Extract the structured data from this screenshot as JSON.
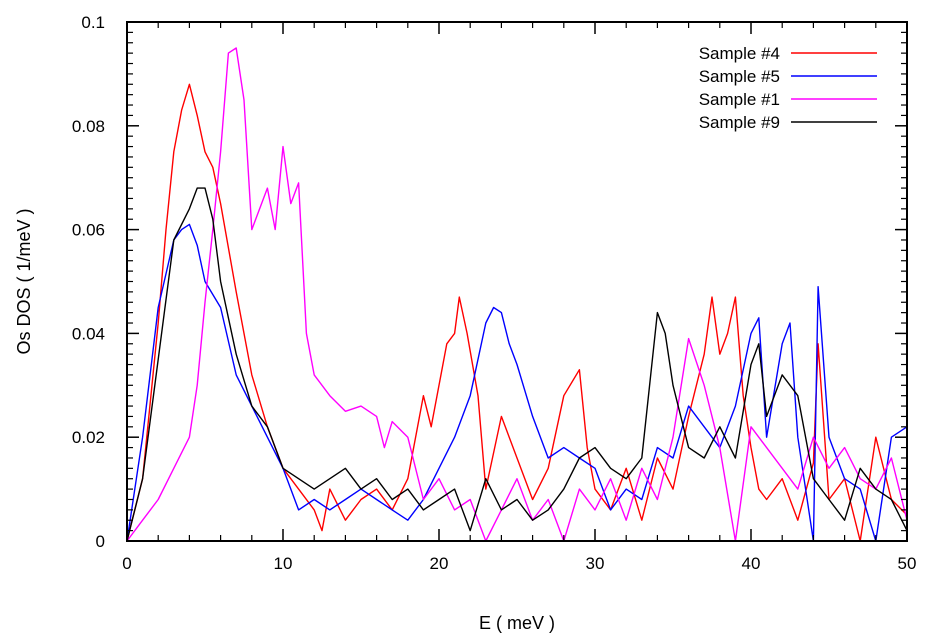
{
  "chart_data": {
    "type": "line",
    "title": "",
    "xlabel": "E ( meV )",
    "ylabel": "Os DOS ( 1/meV )",
    "xlim": [
      0,
      50
    ],
    "ylim": [
      0,
      0.1
    ],
    "xticks": [
      0,
      10,
      20,
      30,
      40,
      50
    ],
    "xtick_labels": [
      "0",
      "10",
      "20",
      "30",
      "40",
      "50"
    ],
    "yticks": [
      0,
      0.02,
      0.04,
      0.06,
      0.08,
      0.1
    ],
    "ytick_labels": [
      "0",
      "0.02",
      "0.04",
      "0.06",
      "0.08",
      "0.1"
    ],
    "grid": false,
    "legend_position": "top-right",
    "series": [
      {
        "name": "Sample #4",
        "color": "#ff0000",
        "x": [
          0,
          1,
          2,
          2.5,
          3,
          3.5,
          4,
          4.5,
          5,
          5.5,
          6,
          7,
          8,
          9,
          10,
          11,
          12,
          12.5,
          13,
          14,
          15,
          16,
          17,
          18,
          19,
          19.5,
          20,
          20.5,
          21,
          21.3,
          21.8,
          22.5,
          23,
          24,
          25,
          26,
          27,
          28,
          29,
          29.5,
          30,
          31,
          32,
          33,
          34,
          35,
          36,
          36.5,
          37,
          37.5,
          38,
          38.5,
          39,
          39.5,
          40,
          40.5,
          41,
          42,
          43,
          44,
          44.3,
          45,
          46,
          47,
          48,
          49,
          50
        ],
        "y": [
          0,
          0.012,
          0.042,
          0.06,
          0.075,
          0.083,
          0.088,
          0.082,
          0.075,
          0.072,
          0.065,
          0.048,
          0.032,
          0.022,
          0.014,
          0.01,
          0.006,
          0.002,
          0.01,
          0.004,
          0.008,
          0.01,
          0.006,
          0.012,
          0.028,
          0.022,
          0.03,
          0.038,
          0.04,
          0.047,
          0.04,
          0.028,
          0.01,
          0.024,
          0.016,
          0.008,
          0.014,
          0.028,
          0.033,
          0.018,
          0.01,
          0.006,
          0.014,
          0.004,
          0.016,
          0.01,
          0.024,
          0.03,
          0.036,
          0.047,
          0.036,
          0.04,
          0.047,
          0.028,
          0.018,
          0.01,
          0.008,
          0.012,
          0.004,
          0.015,
          0.038,
          0.008,
          0.012,
          0.0,
          0.02,
          0.008,
          0.005
        ]
      },
      {
        "name": "Sample #5",
        "color": "#0000ff",
        "x": [
          0,
          1,
          2,
          3,
          3.5,
          4,
          4.5,
          5,
          6,
          7,
          8,
          9,
          10,
          11,
          12,
          13,
          14,
          15,
          16,
          17,
          18,
          19,
          20,
          21,
          22,
          23,
          23.5,
          24,
          24.5,
          25,
          26,
          27,
          28,
          29,
          30,
          31,
          32,
          33,
          34,
          35,
          36,
          37,
          38,
          39,
          40,
          40.5,
          41,
          42,
          42.5,
          43,
          44,
          44.3,
          45,
          46,
          47,
          48,
          49,
          50
        ],
        "y": [
          0,
          0.02,
          0.045,
          0.058,
          0.06,
          0.061,
          0.057,
          0.05,
          0.045,
          0.032,
          0.026,
          0.02,
          0.014,
          0.006,
          0.008,
          0.006,
          0.008,
          0.01,
          0.008,
          0.006,
          0.004,
          0.008,
          0.014,
          0.02,
          0.028,
          0.042,
          0.045,
          0.044,
          0.038,
          0.034,
          0.024,
          0.016,
          0.018,
          0.016,
          0.014,
          0.006,
          0.01,
          0.008,
          0.018,
          0.016,
          0.026,
          0.022,
          0.018,
          0.026,
          0.04,
          0.043,
          0.02,
          0.038,
          0.042,
          0.02,
          0.0,
          0.049,
          0.02,
          0.012,
          0.01,
          0.0,
          0.02,
          0.022
        ]
      },
      {
        "name": "Sample #1",
        "color": "#ff00ff",
        "x": [
          0,
          1,
          2,
          3,
          4,
          4.5,
          5,
          5.5,
          6,
          6.5,
          7,
          7.5,
          8,
          9,
          9.5,
          10,
          10.5,
          11,
          11.5,
          12,
          13,
          14,
          15,
          16,
          16.5,
          17,
          18,
          19,
          20,
          21,
          22,
          23,
          24,
          25,
          26,
          27,
          28,
          29,
          30,
          31,
          32,
          33,
          34,
          35,
          36,
          37,
          38,
          39,
          40,
          41,
          42,
          43,
          44,
          45,
          46,
          47,
          48,
          49,
          50
        ],
        "y": [
          0,
          0.004,
          0.008,
          0.014,
          0.02,
          0.03,
          0.046,
          0.06,
          0.075,
          0.094,
          0.095,
          0.085,
          0.06,
          0.068,
          0.06,
          0.076,
          0.065,
          0.069,
          0.04,
          0.032,
          0.028,
          0.025,
          0.026,
          0.024,
          0.018,
          0.023,
          0.02,
          0.008,
          0.012,
          0.006,
          0.008,
          0.0,
          0.006,
          0.012,
          0.004,
          0.008,
          0.0,
          0.01,
          0.006,
          0.012,
          0.004,
          0.014,
          0.008,
          0.02,
          0.039,
          0.03,
          0.018,
          0.0,
          0.022,
          0.018,
          0.014,
          0.01,
          0.02,
          0.014,
          0.018,
          0.012,
          0.01,
          0.016,
          0.004
        ]
      },
      {
        "name": "Sample #9",
        "color": "#000000",
        "x": [
          0,
          1,
          2,
          3,
          4,
          4.5,
          5,
          5.5,
          6,
          7,
          8,
          9,
          10,
          11,
          12,
          13,
          14,
          15,
          16,
          17,
          18,
          19,
          20,
          21,
          22,
          23,
          24,
          25,
          26,
          27,
          28,
          29,
          30,
          31,
          32,
          33,
          34,
          34.5,
          35,
          36,
          37,
          38,
          39,
          40,
          40.5,
          41,
          42,
          43,
          44,
          45,
          46,
          47,
          48,
          49,
          50
        ],
        "y": [
          0,
          0.012,
          0.035,
          0.058,
          0.064,
          0.068,
          0.068,
          0.062,
          0.05,
          0.036,
          0.026,
          0.022,
          0.014,
          0.012,
          0.01,
          0.012,
          0.014,
          0.01,
          0.012,
          0.008,
          0.01,
          0.006,
          0.008,
          0.01,
          0.002,
          0.012,
          0.006,
          0.008,
          0.004,
          0.006,
          0.01,
          0.016,
          0.018,
          0.014,
          0.012,
          0.016,
          0.044,
          0.04,
          0.03,
          0.018,
          0.016,
          0.022,
          0.016,
          0.034,
          0.038,
          0.024,
          0.032,
          0.028,
          0.012,
          0.008,
          0.004,
          0.014,
          0.01,
          0.008,
          0.002
        ]
      }
    ]
  }
}
